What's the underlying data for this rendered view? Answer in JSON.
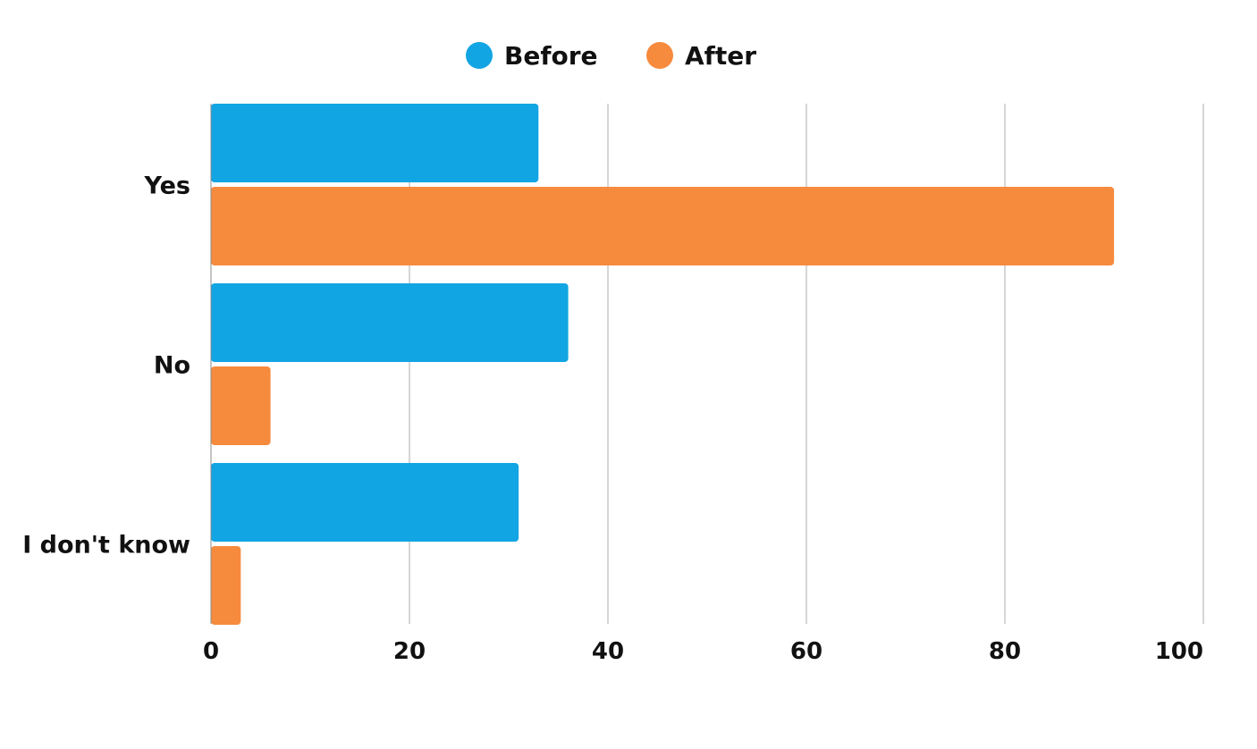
{
  "chart_data": {
    "type": "bar",
    "orientation": "horizontal",
    "title": "",
    "xlabel": "",
    "ylabel": "",
    "categories": [
      "Yes",
      "No",
      "I don't know"
    ],
    "series": [
      {
        "name": "Before",
        "values": [
          33,
          36,
          31
        ],
        "color": "#12A5E3"
      },
      {
        "name": "After",
        "values": [
          91,
          6,
          3
        ],
        "color": "#F68B3E"
      }
    ],
    "xlim": [
      0,
      100
    ],
    "x_ticks": [
      "0",
      "20",
      "40",
      "60",
      "80",
      "100"
    ],
    "grid": true,
    "legend_position": "top-center"
  }
}
